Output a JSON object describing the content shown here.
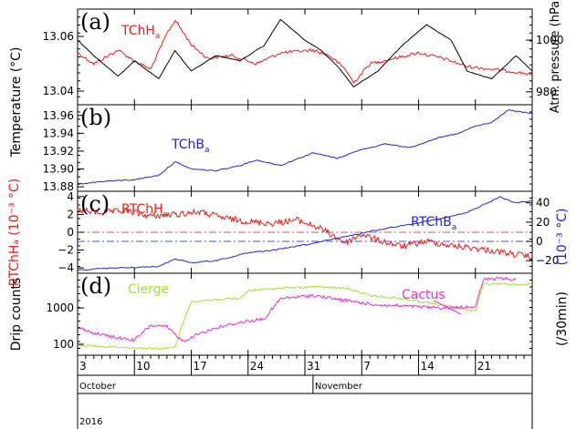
{
  "chart_data": {
    "type": "line",
    "x_axis": {
      "ticks": [
        "3",
        "10",
        "17",
        "24",
        "31",
        "7",
        "14",
        "21"
      ],
      "months": [
        "October",
        "November"
      ],
      "year": "2016",
      "range": [
        "2016-10-03",
        "2016-11-28"
      ]
    },
    "panels": [
      {
        "letter": "(a)",
        "ylabel_left": "Temperature (°C)",
        "ylabel_right": "Atm. pressure (hPa)",
        "yticks_left": [
          "13.06",
          "13.04"
        ],
        "yticks_right": [
          "1000",
          "980"
        ],
        "ylim_left": [
          13.035,
          13.07
        ],
        "ylim_right": [
          975,
          1012
        ],
        "series": [
          {
            "name": "TChHₐ",
            "axis": "left",
            "color": "#e8211c",
            "x": [
              "2016-10-03",
              "2016-10-05",
              "2016-10-08",
              "2016-10-10",
              "2016-10-12",
              "2016-10-14",
              "2016-10-15",
              "2016-10-17",
              "2016-10-19",
              "2016-10-22",
              "2016-10-25",
              "2016-10-28",
              "2016-11-01",
              "2016-11-03",
              "2016-11-05",
              "2016-11-06",
              "2016-11-08",
              "2016-11-11",
              "2016-11-14",
              "2016-11-17",
              "2016-11-20",
              "2016-11-23",
              "2016-11-26",
              "2016-11-28"
            ],
            "values": [
              13.054,
              13.05,
              13.055,
              13.051,
              13.048,
              13.061,
              13.066,
              13.057,
              13.052,
              13.053,
              13.05,
              13.054,
              13.055,
              13.053,
              13.048,
              13.043,
              13.05,
              13.052,
              13.054,
              13.052,
              13.049,
              13.048,
              13.047,
              13.046
            ]
          },
          {
            "name": "",
            "axis": "right",
            "color": "#000000",
            "x": [
              "2016-10-03",
              "2016-10-05",
              "2016-10-08",
              "2016-10-10",
              "2016-10-13",
              "2016-10-15",
              "2016-10-17",
              "2016-10-20",
              "2016-10-23",
              "2016-10-26",
              "2016-10-28",
              "2016-10-31",
              "2016-11-02",
              "2016-11-04",
              "2016-11-06",
              "2016-11-09",
              "2016-11-12",
              "2016-11-15",
              "2016-11-18",
              "2016-11-20",
              "2016-11-23",
              "2016-11-26",
              "2016-11-28"
            ],
            "values": [
              1000,
              994,
              986,
              992,
              985,
              996,
              988,
              994,
              992,
              998,
              1008,
              1000,
              996,
              990,
              982,
              988,
              998,
              1006,
              1000,
              988,
              985,
              994,
              988
            ]
          }
        ]
      },
      {
        "letter": "(b)",
        "yticks_left": [
          "13.96",
          "13.94",
          "13.92",
          "13.90",
          "13.88"
        ],
        "ylim_left": [
          13.875,
          13.972
        ],
        "series": [
          {
            "name": "TChBₐ",
            "axis": "left",
            "color": "#2323d8",
            "x": [
              "2016-10-03",
              "2016-10-06",
              "2016-10-10",
              "2016-10-13",
              "2016-10-15",
              "2016-10-17",
              "2016-10-20",
              "2016-10-23",
              "2016-10-25",
              "2016-10-28",
              "2016-11-01",
              "2016-11-04",
              "2016-11-07",
              "2016-11-10",
              "2016-11-13",
              "2016-11-16",
              "2016-11-19",
              "2016-11-21",
              "2016-11-23",
              "2016-11-25",
              "2016-11-28"
            ],
            "values": [
              13.883,
              13.886,
              13.888,
              13.893,
              13.908,
              13.9,
              13.898,
              13.904,
              13.91,
              13.904,
              13.918,
              13.912,
              13.922,
              13.928,
              13.924,
              13.934,
              13.94,
              13.948,
              13.952,
              13.966,
              13.962
            ]
          }
        ]
      },
      {
        "letter": "(c)",
        "ylabel_left": "RTChHₐ (10⁻³ °C)",
        "ylabel_right": "(10⁻³ °C)",
        "yticks_left": [
          "4",
          "2",
          "0",
          "−2",
          "−4"
        ],
        "yticks_right": [
          "40",
          "20",
          "0",
          "−20"
        ],
        "ylim_left": [
          -4.6,
          4.6
        ],
        "ylim_right": [
          -33,
          52
        ],
        "series": [
          {
            "name": "RTChHₐ",
            "axis": "left",
            "color": "#e8211c",
            "x": [
              "2016-10-03",
              "2016-10-06",
              "2016-10-09",
              "2016-10-12",
              "2016-10-15",
              "2016-10-18",
              "2016-10-21",
              "2016-10-24",
              "2016-10-27",
              "2016-10-30",
              "2016-11-02",
              "2016-11-05",
              "2016-11-07",
              "2016-11-09",
              "2016-11-12",
              "2016-11-15",
              "2016-11-18",
              "2016-11-21",
              "2016-11-24",
              "2016-11-28"
            ],
            "values": [
              2.5,
              2.2,
              2.4,
              1.8,
              2.0,
              2.3,
              1.6,
              1.2,
              1.0,
              1.4,
              0.4,
              -1.2,
              -0.2,
              -0.9,
              -1.6,
              -1.0,
              -1.5,
              -1.8,
              -2.2,
              -2.8
            ]
          },
          {
            "name": "RTChBₐ",
            "axis": "right",
            "color": "#2323d8",
            "x": [
              "2016-10-03",
              "2016-10-06",
              "2016-10-10",
              "2016-10-13",
              "2016-10-15",
              "2016-10-17",
              "2016-10-20",
              "2016-10-24",
              "2016-10-28",
              "2016-11-01",
              "2016-11-05",
              "2016-11-09",
              "2016-11-13",
              "2016-11-17",
              "2016-11-20",
              "2016-11-22",
              "2016-11-24",
              "2016-11-26",
              "2016-11-28"
            ],
            "values": [
              -30,
              -28,
              -27,
              -26,
              -18,
              -22,
              -20,
              -12,
              -8,
              -2,
              5,
              12,
              18,
              24,
              30,
              38,
              46,
              40,
              42
            ]
          }
        ],
        "reference_lines": [
          {
            "value": 0,
            "axis": "left",
            "color": "#e8211c",
            "style": "dash-dot"
          },
          {
            "value": 0,
            "axis": "right",
            "color": "#2323d8",
            "style": "dash-dot"
          }
        ]
      },
      {
        "letter": "(d)",
        "ylabel_left": "Drip counts",
        "ylabel_right": "(/30min)",
        "yticks_left": [
          "1000",
          "100"
        ],
        "scale": "log",
        "ylim_left": [
          50,
          9000
        ],
        "series": [
          {
            "name": "Cierge",
            "axis": "left",
            "color": "#9fe22f",
            "x": [
              "2016-10-03",
              "2016-10-07",
              "2016-10-10",
              "2016-10-14",
              "2016-10-15",
              "2016-10-16",
              "2016-10-17",
              "2016-10-20",
              "2016-10-23",
              "2016-10-24",
              "2016-10-28",
              "2016-11-01",
              "2016-11-05",
              "2016-11-08",
              "2016-11-12",
              "2016-11-16",
              "2016-11-20",
              "2016-11-21",
              "2016-11-22",
              "2016-11-28"
            ],
            "values": [
              95,
              85,
              80,
              75,
              85,
              400,
              1500,
              1700,
              1800,
              3000,
              3500,
              3800,
              3500,
              2200,
              1800,
              1300,
              900,
              800,
              4500,
              4500
            ]
          },
          {
            "name": "Cactus",
            "axis": "left",
            "color": "#e831d2",
            "x": [
              "2016-10-03",
              "2016-10-05",
              "2016-10-08",
              "2016-10-10",
              "2016-10-12",
              "2016-10-14",
              "2016-10-16",
              "2016-10-18",
              "2016-10-20",
              "2016-10-23",
              "2016-10-26",
              "2016-10-28",
              "2016-11-01",
              "2016-11-05",
              "2016-11-09",
              "2016-11-13",
              "2016-11-17",
              "2016-11-21",
              "2016-11-22",
              "2016-11-24",
              "2016-11-26"
            ],
            "values": [
              300,
              200,
              150,
              130,
              330,
              300,
              120,
              200,
              280,
              400,
              500,
              1800,
              2200,
              1600,
              1200,
              1100,
              1000,
              1100,
              6000,
              6500,
              6000
            ]
          }
        ]
      }
    ]
  }
}
